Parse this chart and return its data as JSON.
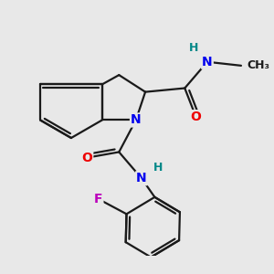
{
  "bg_color": "#e8e8e8",
  "bond_color": "#1a1a1a",
  "bond_width": 1.6,
  "atom_colors": {
    "N": "#0000ee",
    "O": "#ee0000",
    "F": "#bb00bb",
    "H": "#008888",
    "C": "#1a1a1a"
  },
  "font_size": 9,
  "fig_size": [
    3.0,
    3.0
  ],
  "dpi": 100,
  "xlim": [
    -3.0,
    3.8
  ],
  "ylim": [
    -3.5,
    2.8
  ]
}
